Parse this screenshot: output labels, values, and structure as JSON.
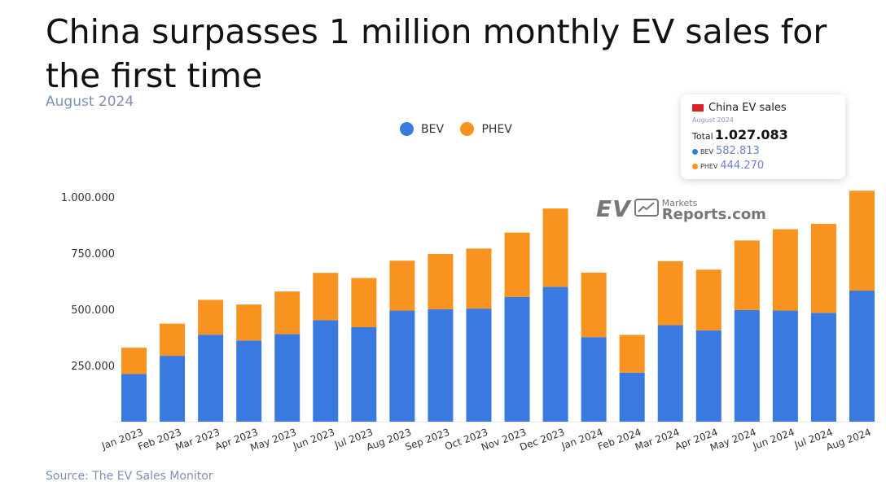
{
  "title": "China surpasses 1 million monthly EV sales for the first time",
  "subtitle": "August 2024",
  "source": "Source: The EV Sales Monitor",
  "colors": {
    "bev": "#3a7ae0",
    "phev": "#f7931e"
  },
  "watermark": {
    "ev": "EV",
    "markets": "Markets",
    "reports": "Reports.com"
  },
  "tooltip": {
    "title": "China EV sales",
    "date": "August 2024",
    "total_label": "Total",
    "total_value": "1.027.083",
    "bev_label": "BEV",
    "bev_value": "582.813",
    "phev_label": "PHEV",
    "phev_value": "444.270"
  },
  "chart_data": {
    "type": "bar",
    "stacked": true,
    "categories": [
      "Jan 2023",
      "Feb 2023",
      "Mar 2023",
      "Apr 2023",
      "May 2023",
      "Jun 2023",
      "Jul 2023",
      "Aug 2023",
      "Sep 2023",
      "Oct 2023",
      "Nov 2023",
      "Dec 2023",
      "Jan 2024",
      "Feb 2024",
      "Mar 2024",
      "Apr 2024",
      "May 2024",
      "Jun 2024",
      "Jul 2024",
      "Aug 2024"
    ],
    "series": [
      {
        "name": "BEV",
        "color": "#3a7ae0",
        "values": [
          212000,
          293000,
          387000,
          361000,
          389000,
          451000,
          420000,
          494000,
          500000,
          503000,
          555000,
          600000,
          376000,
          218000,
          429000,
          406000,
          497000,
          494000,
          484000,
          582813
        ]
      },
      {
        "name": "PHEV",
        "color": "#f7931e",
        "values": [
          117000,
          143000,
          155000,
          160000,
          190000,
          211000,
          219000,
          222000,
          246000,
          267000,
          286000,
          348000,
          287000,
          168000,
          285000,
          270000,
          309000,
          362000,
          396000,
          444270
        ]
      }
    ],
    "yticks": [
      250000,
      500000,
      750000,
      1000000
    ],
    "ytick_labels": [
      "250.000",
      "500.000",
      "750.000",
      "1.000.000"
    ],
    "ylim": [
      0,
      1050000
    ],
    "legend_position": "top-center",
    "grid": false
  }
}
